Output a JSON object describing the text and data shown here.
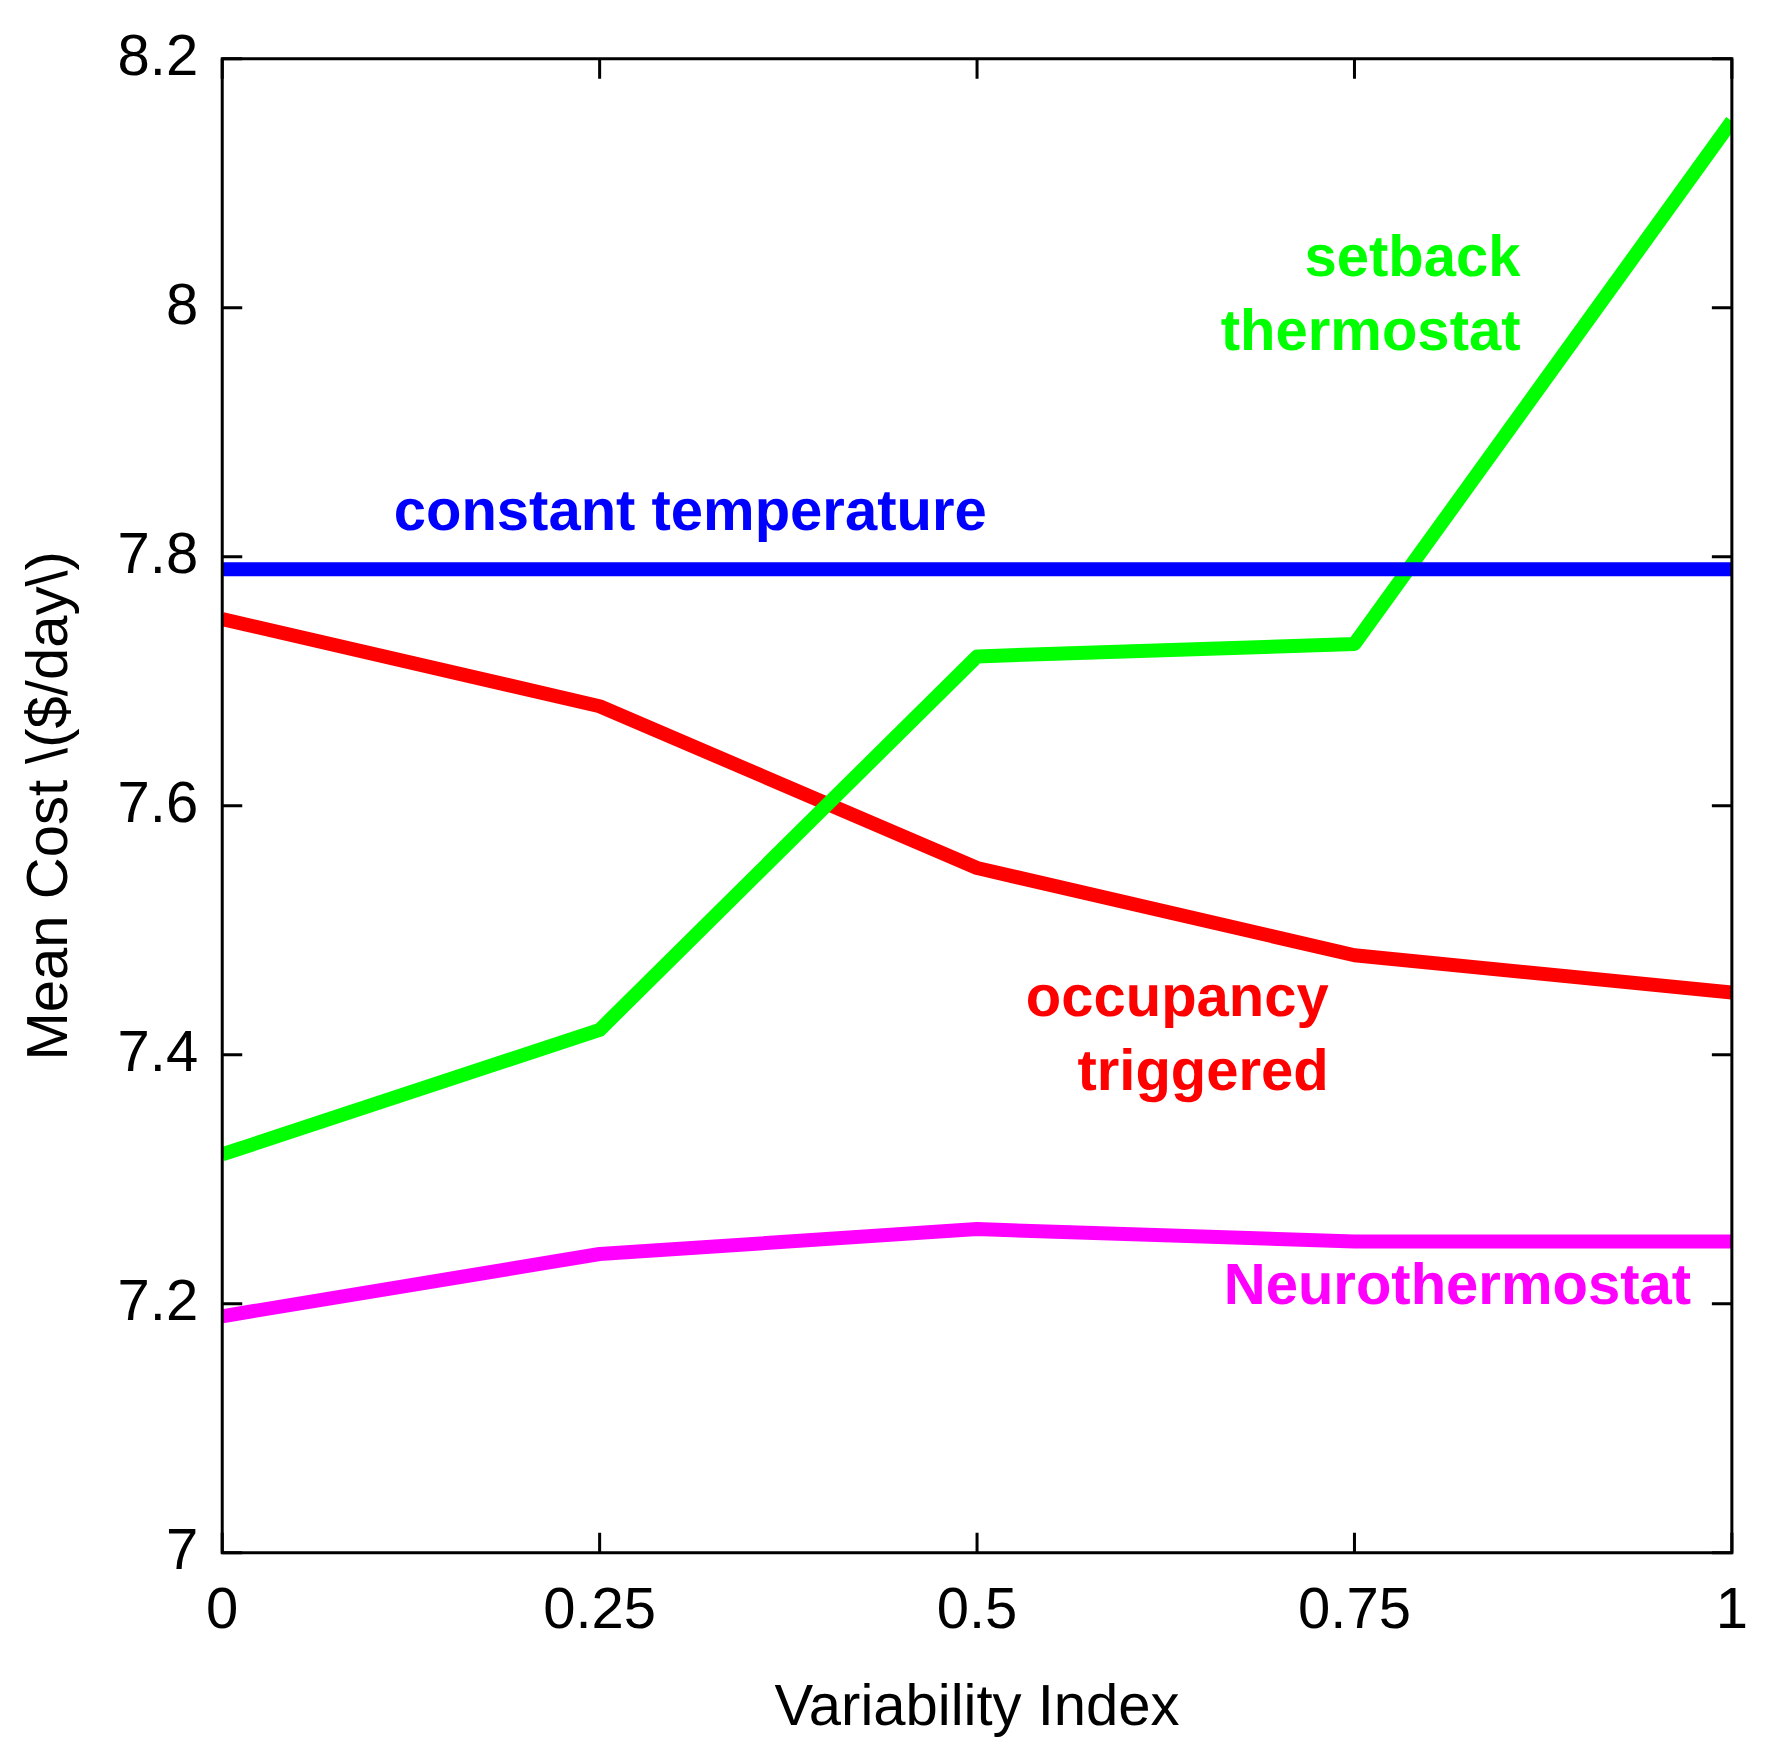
{
  "chart_data": {
    "type": "line",
    "xlabel": "Variability Index",
    "ylabel": "Mean Cost \\($/day\\)",
    "x": [
      0,
      0.25,
      0.5,
      0.75,
      1
    ],
    "xlim": [
      0,
      1
    ],
    "xticks": [
      0,
      0.25,
      0.5,
      0.75,
      1
    ],
    "ylim": [
      7,
      8.2
    ],
    "yticks": [
      7,
      7.2,
      7.4,
      7.6,
      7.8,
      8,
      8.2
    ],
    "grid": false,
    "legend": false,
    "marker": "none",
    "line_style": "solid",
    "series": [
      {
        "name": "constant temperature",
        "color": "#0000ff",
        "values": [
          7.79,
          7.79,
          7.79,
          7.79,
          7.79
        ]
      },
      {
        "name": "setback thermostat",
        "color": "#00ff00",
        "values": [
          7.32,
          7.42,
          7.72,
          7.73,
          8.15
        ]
      },
      {
        "name": "occupancy triggered",
        "color": "#ff0000",
        "values": [
          7.75,
          7.68,
          7.55,
          7.48,
          7.45
        ]
      },
      {
        "name": "Neurothermostat",
        "color": "#ff00ff",
        "values": [
          7.19,
          7.24,
          7.26,
          7.25,
          7.25
        ]
      }
    ]
  }
}
